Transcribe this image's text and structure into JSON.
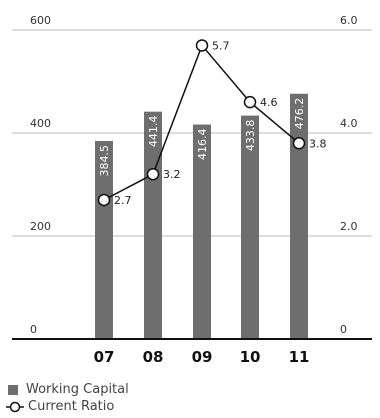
{
  "chart_data": {
    "type": "bar+line",
    "categories": [
      "07",
      "08",
      "09",
      "10",
      "11"
    ],
    "series": [
      {
        "name": "Working Capital",
        "type": "bar",
        "axis": "left",
        "values": [
          384.5,
          441.4,
          416.4,
          433.8,
          476.2
        ],
        "labels": [
          "384.5",
          "441.4",
          "416.4",
          "433.8",
          "476.2"
        ]
      },
      {
        "name": "Current Ratio",
        "type": "line",
        "axis": "right",
        "values": [
          2.7,
          3.2,
          5.7,
          4.6,
          3.8
        ],
        "labels": [
          "2.7",
          "3.2",
          "5.7",
          "4.6",
          "3.8"
        ]
      }
    ],
    "left_axis": {
      "ticks": [
        "0",
        "200",
        "400",
        "600"
      ],
      "tick_values": [
        0,
        200,
        400,
        600
      ],
      "ylim": [
        0,
        600
      ]
    },
    "right_axis": {
      "ticks": [
        "0",
        "2.0",
        "4.0",
        "6.0"
      ],
      "tick_values": [
        0,
        2,
        4,
        6
      ],
      "ylim": [
        0,
        6
      ]
    },
    "grid": true,
    "legend_placement": "bottom-left",
    "colors": {
      "bar": "#6e6e6e",
      "line": "#111111",
      "grid": "#bbbbbb",
      "axis": "#111111"
    }
  },
  "legend": {
    "bar_label": "Working Capital",
    "line_label": "Current Ratio"
  }
}
